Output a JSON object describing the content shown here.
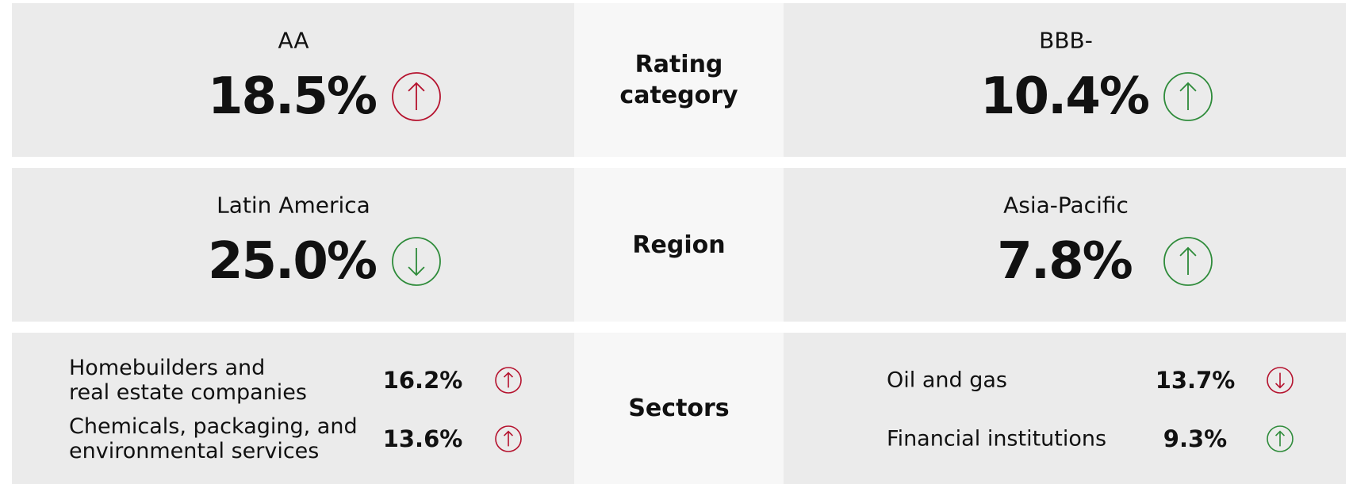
{
  "rows": [
    {
      "category": "Rating category",
      "left": {
        "label": "AA",
        "value": "18.5%",
        "trend": "up",
        "color": "#b5122e"
      },
      "right": {
        "label": "BBB-",
        "value": "10.4%",
        "trend": "up",
        "color": "#2e8b3a"
      }
    },
    {
      "category": "Region",
      "left": {
        "label": "Latin America",
        "value": "25.0%",
        "trend": "down",
        "color": "#2e8b3a"
      },
      "right": {
        "label": "Asia-Pacific",
        "value": "7.8%",
        "trend": "up",
        "color": "#2e8b3a"
      }
    },
    {
      "category": "Sectors",
      "left": [
        {
          "lines": [
            "Homebuilders and",
            "real estate companies"
          ],
          "value": "16.2%",
          "trend": "up",
          "color": "#b5122e"
        },
        {
          "lines": [
            "Chemicals, packaging, and",
            "environmental services"
          ],
          "value": "13.6%",
          "trend": "up",
          "color": "#b5122e"
        }
      ],
      "right": [
        {
          "lines": [
            "Oil and gas"
          ],
          "value": "13.7%",
          "trend": "down",
          "color": "#b5122e"
        },
        {
          "lines": [
            "Financial institutions"
          ],
          "value": "9.3%",
          "trend": "up",
          "color": "#2e8b3a"
        }
      ]
    }
  ]
}
